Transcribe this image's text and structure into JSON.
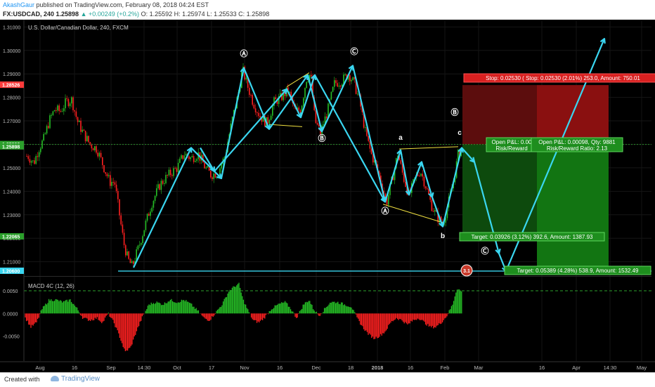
{
  "header": {
    "author": "AkashGaur",
    "published": "published on TradingView.com, February 08, 2018 04:24 EST",
    "symbol": "FX:USDCAD, 240",
    "last": "1.25898",
    "change": "▲ +0.00249 (+0.2%)",
    "ohlc": "O: 1.25592  H: 1.25974  L: 1.25533  C: 1.25898"
  },
  "footer": {
    "created": "Created with",
    "brand": "TradingView"
  },
  "colors": {
    "up": "#26c026",
    "down": "#ff2020",
    "wave": "#3ad6f0",
    "trend": "#f0e040",
    "stop": "#ff3b3b",
    "target": "#2ca02c",
    "dashed": "#2ca02c"
  },
  "chart_data": [
    {
      "type": "candlestick",
      "title": "U.S. Dollar/Canadian Dollar, 240, FXCM",
      "ylim": [
        1.2045,
        1.3125
      ],
      "ytick_labels": [
        "1.31000",
        "1.30000",
        "1.29000",
        "1.28000",
        "1.27000",
        "1.26000",
        "1.25000",
        "1.24000",
        "1.23000",
        "1.22000",
        "1.21000"
      ],
      "ytick_values": [
        1.31,
        1.3,
        1.29,
        1.28,
        1.27,
        1.26,
        1.25,
        1.24,
        1.23,
        1.22,
        1.21
      ],
      "price_tags": [
        {
          "label": "1.28524",
          "value": 1.28524,
          "color": "#ff3b3b"
        },
        {
          "label": "1.28526",
          "value": 1.28526,
          "color": "#ff3b3b"
        },
        {
          "label": "1.25994",
          "value": 1.25994,
          "color": "#2ca02c"
        },
        {
          "label": "1.25996",
          "value": 1.25996,
          "color": "#2ca02c"
        },
        {
          "label": "1.25898",
          "value": 1.25898,
          "color": "#2ca02c"
        },
        {
          "label": "1.22065",
          "value": 1.22065,
          "color": "#2ca02c"
        },
        {
          "label": "1.20600",
          "value": 1.206,
          "color": "#3ad6f0"
        }
      ],
      "x_tick_labels": [
        "Aug",
        "16",
        "Sep",
        "14:30",
        "Oct",
        "17",
        "Nov",
        "16",
        "Dec",
        "18",
        "2018",
        "16",
        "Feb",
        "Mar",
        "16",
        "Apr",
        "14:30",
        "May"
      ],
      "x_tick_pos": [
        57,
        106,
        158,
        205,
        252,
        301,
        348,
        398,
        450,
        499,
        537,
        584,
        633,
        681,
        771,
        820,
        868,
        913
      ],
      "price_path": [
        [
          40,
          1.255
        ],
        [
          48,
          1.252
        ],
        [
          55,
          1.258
        ],
        [
          62,
          1.262
        ],
        [
          70,
          1.27
        ],
        [
          78,
          1.275
        ],
        [
          86,
          1.274
        ],
        [
          94,
          1.278
        ],
        [
          102,
          1.279
        ],
        [
          110,
          1.27
        ],
        [
          118,
          1.265
        ],
        [
          128,
          1.26
        ],
        [
          138,
          1.258
        ],
        [
          148,
          1.25
        ],
        [
          156,
          1.244
        ],
        [
          163,
          1.244
        ],
        [
          170,
          1.23
        ],
        [
          176,
          1.218
        ],
        [
          182,
          1.211
        ],
        [
          188,
          1.208
        ],
        [
          196,
          1.215
        ],
        [
          206,
          1.225
        ],
        [
          216,
          1.235
        ],
        [
          228,
          1.243
        ],
        [
          240,
          1.247
        ],
        [
          252,
          1.25
        ],
        [
          262,
          1.256
        ],
        [
          272,
          1.254
        ],
        [
          282,
          1.256
        ],
        [
          292,
          1.25
        ],
        [
          300,
          1.247
        ],
        [
          310,
          1.248
        ],
        [
          320,
          1.255
        ],
        [
          330,
          1.27
        ],
        [
          338,
          1.28
        ],
        [
          345,
          1.292
        ],
        [
          352,
          1.285
        ],
        [
          360,
          1.278
        ],
        [
          370,
          1.272
        ],
        [
          380,
          1.269
        ],
        [
          390,
          1.278
        ],
        [
          400,
          1.28
        ],
        [
          410,
          1.283
        ],
        [
          420,
          1.274
        ],
        [
          428,
          1.275
        ],
        [
          436,
          1.288
        ],
        [
          442,
          1.29
        ],
        [
          448,
          1.27
        ],
        [
          456,
          1.265
        ],
        [
          466,
          1.274
        ],
        [
          476,
          1.286
        ],
        [
          486,
          1.287
        ],
        [
          496,
          1.29
        ],
        [
          504,
          1.286
        ],
        [
          512,
          1.278
        ],
        [
          520,
          1.265
        ],
        [
          528,
          1.256
        ],
        [
          536,
          1.25
        ],
        [
          544,
          1.242
        ],
        [
          550,
          1.235
        ],
        [
          558,
          1.245
        ],
        [
          566,
          1.256
        ],
        [
          574,
          1.246
        ],
        [
          582,
          1.238
        ],
        [
          590,
          1.245
        ],
        [
          598,
          1.249
        ],
        [
          606,
          1.242
        ],
        [
          614,
          1.234
        ],
        [
          622,
          1.229
        ],
        [
          630,
          1.226
        ],
        [
          638,
          1.235
        ],
        [
          646,
          1.245
        ],
        [
          652,
          1.256
        ],
        [
          658,
          1.259
        ]
      ],
      "waves": [
        [
          [
            190,
            1.2075
          ],
          [
            272,
            1.2585
          ],
          [
            315,
            1.2455
          ],
          [
            347,
            1.2925
          ],
          [
            383,
            1.2665
          ],
          [
            438,
            1.2895
          ],
          [
            458,
            1.2655
          ],
          [
            502,
            1.2935
          ],
          [
            548,
            1.2355
          ],
          [
            570,
            1.2575
          ],
          [
            582,
            1.2385
          ],
          [
            600,
            1.2525
          ],
          [
            615,
            1.2375
          ],
          [
            630,
            1.225
          ],
          [
            657,
            1.2585
          ],
          [
            675,
            1.2525
          ],
          [
            710,
            1.2135
          ],
          [
            720,
            1.206
          ],
          [
            860,
            1.305
          ]
        ],
        [
          [
            285,
            1.2585
          ],
          [
            305,
            1.2485
          ],
          [
            408,
            1.2835
          ],
          [
            428,
            1.2715
          ],
          [
            448,
            1.2895
          ],
          [
            548,
            1.2355
          ]
        ]
      ],
      "trendlines": [
        [
          [
            383,
            1.2685
          ],
          [
            430,
            1.2675
          ]
        ],
        [
          [
            408,
            1.2845
          ],
          [
            440,
            1.2905
          ]
        ],
        [
          [
            545,
            1.2345
          ],
          [
            632,
            1.2265
          ]
        ],
        [
          [
            568,
            1.258
          ],
          [
            652,
            1.259
          ]
        ]
      ],
      "horizontal_line": 1.206,
      "dashed_level": 1.25994,
      "wave_labels": [
        {
          "text": "Ⓐ",
          "x": 347,
          "y": 1.2975
        },
        {
          "text": "Ⓒ",
          "x": 504,
          "y": 1.2985
        },
        {
          "text": "Ⓑ",
          "x": 458,
          "y": 1.2615
        },
        {
          "text": "Ⓑ",
          "x": 647,
          "y": 1.2725
        },
        {
          "text": "Ⓐ",
          "x": 548,
          "y": 1.2305
        },
        {
          "text": "Ⓒ",
          "x": 690,
          "y": 1.2135
        },
        {
          "text": "a",
          "x": 570,
          "y": 1.262
        },
        {
          "text": "c",
          "x": 654,
          "y": 1.264
        },
        {
          "text": "b",
          "x": 630,
          "y": 1.22
        }
      ],
      "annotations": {
        "stop": "Stop: 0.02530 ( Stop: 0.02530 (2.01%) 253.0, Amount: 750.01",
        "pnl1": "Open P&L: 0.00",
        "rr1": "Risk/Reward",
        "pnl2": "Open P&L: 0.00098, Qty: 9881",
        "rr2": "Risk/Reward Ratio: 2.13",
        "target1": "Target: 0.03926 (3.12%) 392.6, Amount: 1387.93",
        "target2": "Target: 0.05389 (4.28%) 538.9, Amount: 1532.49",
        "badge": "3.1"
      }
    },
    {
      "type": "bar",
      "title": "MACD 4C (12, 26)",
      "ylim": [
        -0.0105,
        0.0078
      ],
      "ytick_labels": [
        "0.0050",
        "0.0000",
        "-0.0050"
      ],
      "ytick_values": [
        0.005,
        0.0,
        -0.005
      ],
      "dashed_level": 0.005,
      "macd_path": [
        [
          36,
          -0.001
        ],
        [
          44,
          -0.003
        ],
        [
          52,
          -0.002
        ],
        [
          60,
          0.001
        ],
        [
          70,
          0.003
        ],
        [
          80,
          0.003
        ],
        [
          90,
          0.0025
        ],
        [
          100,
          0.003
        ],
        [
          110,
          0.001
        ],
        [
          118,
          -0.001
        ],
        [
          128,
          -0.0015
        ],
        [
          138,
          -0.001
        ],
        [
          146,
          -0.002
        ],
        [
          154,
          0.0
        ],
        [
          162,
          -0.002
        ],
        [
          170,
          -0.005
        ],
        [
          178,
          -0.0085
        ],
        [
          186,
          -0.0075
        ],
        [
          194,
          -0.004
        ],
        [
          202,
          -0.001
        ],
        [
          212,
          0.002
        ],
        [
          222,
          0.0025
        ],
        [
          232,
          0.002
        ],
        [
          242,
          0.003
        ],
        [
          252,
          0.0025
        ],
        [
          262,
          0.003
        ],
        [
          272,
          0.002
        ],
        [
          282,
          0.0005
        ],
        [
          290,
          -0.001
        ],
        [
          298,
          -0.0015
        ],
        [
          306,
          0.0
        ],
        [
          316,
          0.002
        ],
        [
          326,
          0.005
        ],
        [
          334,
          0.006
        ],
        [
          340,
          0.0065
        ],
        [
          346,
          0.003
        ],
        [
          352,
          0.001
        ],
        [
          360,
          -0.0015
        ],
        [
          368,
          -0.002
        ],
        [
          376,
          -0.001
        ],
        [
          386,
          0.001
        ],
        [
          396,
          0.002
        ],
        [
          406,
          0.0025
        ],
        [
          414,
          0.001
        ],
        [
          422,
          -0.001
        ],
        [
          432,
          0.002
        ],
        [
          440,
          0.003
        ],
        [
          446,
          0.001
        ],
        [
          454,
          -0.0005
        ],
        [
          462,
          0.001
        ],
        [
          470,
          0.0025
        ],
        [
          480,
          0.0025
        ],
        [
          490,
          0.002
        ],
        [
          500,
          0.0015
        ],
        [
          508,
          -0.001
        ],
        [
          516,
          -0.003
        ],
        [
          524,
          -0.0045
        ],
        [
          532,
          -0.0055
        ],
        [
          540,
          -0.005
        ],
        [
          548,
          -0.004
        ],
        [
          556,
          -0.002
        ],
        [
          564,
          -0.001
        ],
        [
          572,
          -0.0015
        ],
        [
          580,
          -0.0025
        ],
        [
          588,
          -0.0015
        ],
        [
          596,
          -0.001
        ],
        [
          604,
          -0.002
        ],
        [
          612,
          -0.003
        ],
        [
          620,
          -0.003
        ],
        [
          628,
          -0.002
        ],
        [
          636,
          -0.0005
        ],
        [
          644,
          0.002
        ],
        [
          650,
          0.0055
        ],
        [
          656,
          0.005
        ],
        [
          658,
          0.0045
        ]
      ]
    }
  ]
}
